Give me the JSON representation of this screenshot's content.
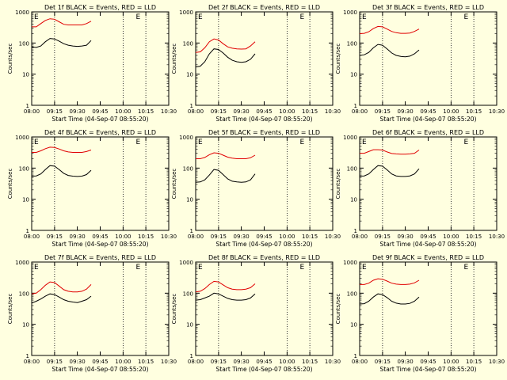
{
  "figure": {
    "background_color": "#ffffe0",
    "frame_color": "#000000",
    "events_color": "#000000",
    "lld_color": "#e00000",
    "ylabel": "Counts/sec",
    "y_ticks": [
      "1",
      "10",
      "100",
      "1000"
    ],
    "x_ticks": [
      "08:00",
      "09:15",
      "09:30",
      "09:45",
      "10:00",
      "10:15",
      "10:30"
    ],
    "xlabel": "Start Time (04-Sep-07 08:55:20)",
    "scale": "log",
    "marker_label": "E"
  },
  "chart_data": [
    {
      "type": "line",
      "title": "Det 1f BLACK = Events, RED = LLD",
      "ylim": [
        1,
        1000
      ],
      "series": [
        {
          "name": "Events",
          "x": [
            0,
            5,
            10,
            15,
            20,
            25,
            30,
            35,
            40,
            45,
            50,
            55,
            60,
            65
          ],
          "y": [
            75,
            72,
            80,
            110,
            140,
            135,
            115,
            95,
            85,
            80,
            78,
            80,
            85,
            120
          ]
        },
        {
          "name": "LLD",
          "x": [
            0,
            5,
            10,
            15,
            20,
            25,
            30,
            35,
            40,
            45,
            50,
            55,
            60,
            65
          ],
          "y": [
            330,
            330,
            420,
            530,
            600,
            580,
            480,
            400,
            380,
            380,
            380,
            380,
            420,
            500
          ]
        }
      ]
    },
    {
      "type": "line",
      "title": "Det 2f BLACK = Events, RED = LLD",
      "ylim": [
        1,
        1000
      ],
      "series": [
        {
          "name": "Events",
          "x": [
            0,
            5,
            10,
            15,
            20,
            25,
            30,
            35,
            40,
            45,
            50,
            55,
            60,
            65
          ],
          "y": [
            17,
            18,
            25,
            45,
            65,
            62,
            48,
            35,
            28,
            25,
            24,
            25,
            30,
            45
          ]
        },
        {
          "name": "LLD",
          "x": [
            0,
            5,
            10,
            15,
            20,
            25,
            30,
            35,
            40,
            45,
            50,
            55,
            60,
            65
          ],
          "y": [
            50,
            52,
            70,
            110,
            135,
            125,
            95,
            75,
            68,
            65,
            64,
            65,
            80,
            110
          ]
        }
      ]
    },
    {
      "type": "line",
      "title": "Det 3f BLACK = Events, RED = LLD",
      "ylim": [
        1,
        1000
      ],
      "series": [
        {
          "name": "Events",
          "x": [
            0,
            5,
            10,
            15,
            20,
            25,
            30,
            35,
            40,
            45,
            50,
            55,
            60,
            65
          ],
          "y": [
            40,
            42,
            50,
            70,
            90,
            85,
            65,
            48,
            40,
            37,
            36,
            38,
            45,
            60
          ]
        },
        {
          "name": "LLD",
          "x": [
            0,
            5,
            10,
            15,
            20,
            25,
            30,
            35,
            40,
            45,
            50,
            55,
            60,
            65
          ],
          "y": [
            200,
            205,
            230,
            290,
            340,
            330,
            280,
            235,
            215,
            205,
            205,
            210,
            235,
            280
          ]
        }
      ]
    },
    {
      "type": "line",
      "title": "Det 4f BLACK = Events, RED = LLD",
      "ylim": [
        1,
        1000
      ],
      "series": [
        {
          "name": "Events",
          "x": [
            0,
            5,
            10,
            15,
            20,
            25,
            30,
            35,
            40,
            45,
            50,
            55,
            60,
            65
          ],
          "y": [
            55,
            56,
            65,
            90,
            120,
            115,
            90,
            68,
            58,
            55,
            54,
            55,
            62,
            85
          ]
        },
        {
          "name": "LLD",
          "x": [
            0,
            5,
            10,
            15,
            20,
            25,
            30,
            35,
            40,
            45,
            50,
            55,
            60,
            65
          ],
          "y": [
            320,
            320,
            360,
            420,
            470,
            460,
            410,
            360,
            330,
            320,
            320,
            320,
            340,
            380
          ]
        }
      ]
    },
    {
      "type": "line",
      "title": "Det 5f BLACK = Events, RED = LLD",
      "ylim": [
        1,
        1000
      ],
      "series": [
        {
          "name": "Events",
          "x": [
            0,
            5,
            10,
            15,
            20,
            25,
            30,
            35,
            40,
            45,
            50,
            55,
            60,
            65
          ],
          "y": [
            35,
            36,
            42,
            60,
            90,
            85,
            62,
            45,
            38,
            36,
            35,
            36,
            42,
            65
          ]
        },
        {
          "name": "LLD",
          "x": [
            0,
            5,
            10,
            15,
            20,
            25,
            30,
            35,
            40,
            45,
            50,
            55,
            60,
            65
          ],
          "y": [
            200,
            200,
            220,
            270,
            310,
            300,
            260,
            225,
            210,
            200,
            200,
            200,
            215,
            260
          ]
        }
      ]
    },
    {
      "type": "line",
      "title": "Det 6f BLACK = Events, RED = LLD",
      "ylim": [
        1,
        1000
      ],
      "series": [
        {
          "name": "Events",
          "x": [
            0,
            5,
            10,
            15,
            20,
            25,
            30,
            35,
            40,
            45,
            50,
            55,
            60,
            65
          ],
          "y": [
            55,
            56,
            65,
            90,
            120,
            115,
            88,
            65,
            56,
            54,
            54,
            56,
            65,
            95
          ]
        },
        {
          "name": "LLD",
          "x": [
            0,
            5,
            10,
            15,
            20,
            25,
            30,
            35,
            40,
            45,
            50,
            55,
            60,
            65
          ],
          "y": [
            300,
            300,
            340,
            390,
            390,
            380,
            330,
            295,
            285,
            280,
            280,
            285,
            300,
            380
          ]
        }
      ]
    },
    {
      "type": "line",
      "title": "Det 7f BLACK = Events, RED = LLD",
      "ylim": [
        1,
        1000
      ],
      "series": [
        {
          "name": "Events",
          "x": [
            0,
            5,
            10,
            15,
            20,
            25,
            30,
            35,
            40,
            45,
            50,
            55,
            60,
            65
          ],
          "y": [
            48,
            55,
            65,
            80,
            95,
            90,
            75,
            62,
            55,
            52,
            50,
            55,
            62,
            80
          ]
        },
        {
          "name": "LLD",
          "x": [
            0,
            5,
            10,
            15,
            20,
            25,
            30,
            35,
            40,
            45,
            50,
            55,
            60,
            65
          ],
          "y": [
            95,
            100,
            130,
            180,
            230,
            220,
            170,
            130,
            115,
            110,
            110,
            115,
            135,
            190
          ]
        }
      ]
    },
    {
      "type": "line",
      "title": "Det 8f BLACK = Events, RED = LLD",
      "ylim": [
        1,
        1000
      ],
      "series": [
        {
          "name": "Events",
          "x": [
            0,
            5,
            10,
            15,
            20,
            25,
            30,
            35,
            40,
            45,
            50,
            55,
            60,
            65
          ],
          "y": [
            60,
            62,
            70,
            80,
            100,
            95,
            80,
            68,
            62,
            60,
            60,
            62,
            70,
            95
          ]
        },
        {
          "name": "LLD",
          "x": [
            0,
            5,
            10,
            15,
            20,
            25,
            30,
            35,
            40,
            45,
            50,
            55,
            60,
            65
          ],
          "y": [
            110,
            115,
            140,
            190,
            240,
            230,
            185,
            150,
            135,
            130,
            130,
            135,
            150,
            200
          ]
        }
      ]
    },
    {
      "type": "line",
      "title": "Det 9f BLACK = Events, RED = LLD",
      "ylim": [
        1,
        1000
      ],
      "series": [
        {
          "name": "Events",
          "x": [
            0,
            5,
            10,
            15,
            20,
            25,
            30,
            35,
            40,
            45,
            50,
            55,
            60,
            65
          ],
          "y": [
            45,
            46,
            55,
            75,
            95,
            90,
            72,
            55,
            48,
            45,
            45,
            47,
            55,
            75
          ]
        },
        {
          "name": "LLD",
          "x": [
            0,
            5,
            10,
            15,
            20,
            25,
            30,
            35,
            40,
            45,
            50,
            55,
            60,
            65
          ],
          "y": [
            190,
            190,
            210,
            260,
            290,
            280,
            245,
            210,
            195,
            190,
            190,
            195,
            215,
            260
          ]
        }
      ]
    }
  ]
}
